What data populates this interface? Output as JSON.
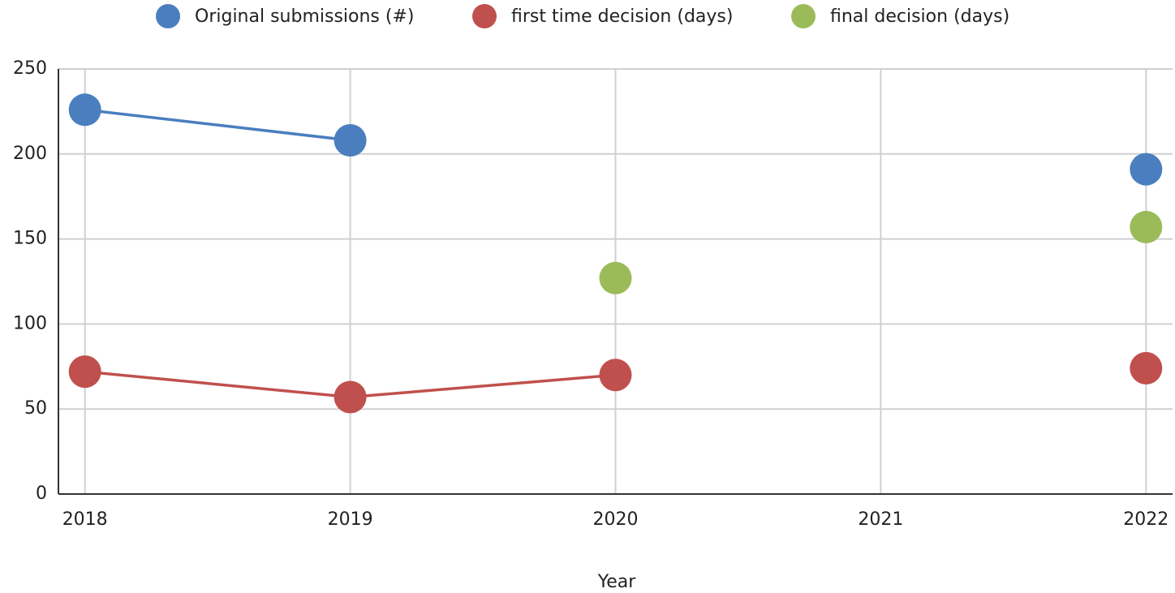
{
  "chart_data": {
    "type": "line",
    "x": [
      2018,
      2019,
      2020,
      2021,
      2022
    ],
    "xlabel": "Year",
    "series": [
      {
        "name": "Original submissions (#)",
        "color": "#4a7ebf",
        "values": [
          226,
          208,
          null,
          null,
          191
        ]
      },
      {
        "name": "first time decision (days)",
        "color": "#c0504d",
        "values": [
          72,
          57,
          70,
          null,
          74
        ]
      },
      {
        "name": "final decision (days)",
        "color": "#9bbb59",
        "values": [
          null,
          null,
          127,
          null,
          157
        ]
      }
    ],
    "xlim": [
      2017.9,
      2022.1
    ],
    "xticks": [
      2018,
      2019,
      2020,
      2021,
      2022
    ],
    "ylim": [
      0,
      250
    ],
    "yticks": [
      0,
      50,
      100,
      150,
      200,
      250
    ],
    "grid": true,
    "legend": "top"
  }
}
